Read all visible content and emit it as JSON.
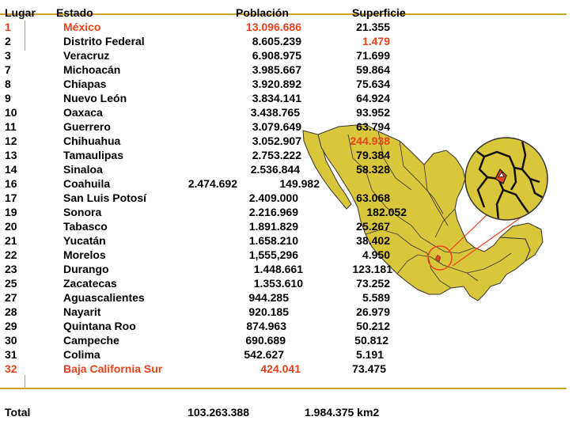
{
  "header": {
    "lugar": "Lugar",
    "estado": "Estado",
    "poblacion": "Población",
    "superficie": "Superficie"
  },
  "rows": [
    {
      "lugar": "1",
      "estado": "México",
      "poblacion": "13.096.686",
      "superficie": "21.355"
    },
    {
      "lugar": "2",
      "estado": "Distrito Federal",
      "poblacion": "8.605.239",
      "superficie": "1.479"
    },
    {
      "lugar": "3",
      "estado": "Veracruz",
      "poblacion": "6.908.975",
      "superficie": "71.699"
    },
    {
      "lugar": "7",
      "estado": "Michoacán",
      "poblacion": "3.985.667",
      "superficie": "59.864"
    },
    {
      "lugar": "8",
      "estado": "Chiapas",
      "poblacion": "3.920.892",
      "superficie": "75.634"
    },
    {
      "lugar": "9",
      "estado": "Nuevo León",
      "poblacion": "3.834.141",
      "superficie": "64.924"
    },
    {
      "lugar": "10",
      "estado": "Oaxaca",
      "poblacion": "3.438.765",
      "superficie": "93.952"
    },
    {
      "lugar": "11",
      "estado": "Guerrero",
      "poblacion": "3.079.649",
      "superficie": "63.794"
    },
    {
      "lugar": "12",
      "estado": "Chihuahua",
      "poblacion": "3.052.907",
      "superficie": "244.938"
    },
    {
      "lugar": "13",
      "estado": "Tamaulipas",
      "poblacion": "2.753.222",
      "superficie": "79.384"
    },
    {
      "lugar": "14",
      "estado": "Sinaloa",
      "poblacion": "2.536.844",
      "superficie": "58.328"
    },
    {
      "lugar": "16",
      "estado": "Coahuila",
      "poblacion": "2.474.692",
      "superficie": "149.982"
    },
    {
      "lugar": "17",
      "estado": "San Luis Potosí",
      "poblacion": "2.409.000",
      "superficie": "63.068"
    },
    {
      "lugar": "19",
      "estado": "Sonora",
      "poblacion": "2.216.969",
      "superficie": "182.052"
    },
    {
      "lugar": "20",
      "estado": "Tabasco",
      "poblacion": "1.891.829",
      "superficie": "25.267"
    },
    {
      "lugar": "21",
      "estado": "Yucatán",
      "poblacion": "1.658.210",
      "superficie": "38.402"
    },
    {
      "lugar": "22",
      "estado": "Morelos",
      "poblacion": "1,555,296",
      "superficie": "4.950"
    },
    {
      "lugar": "23",
      "estado": "Durango",
      "poblacion": "1.448.661",
      "superficie": "123.181"
    },
    {
      "lugar": "25",
      "estado": "Zacatecas",
      "poblacion": "1.353.610",
      "superficie": "73.252"
    },
    {
      "lugar": "27",
      "estado": "Aguascalientes",
      "poblacion": "944.285",
      "superficie": "5.589"
    },
    {
      "lugar": "28",
      "estado": "Nayarit",
      "poblacion": "920.185",
      "superficie": "26.979"
    },
    {
      "lugar": "29",
      "estado": "Quintana Roo",
      "poblacion": "874.963",
      "superficie": "50.212"
    },
    {
      "lugar": "30",
      "estado": "Campeche",
      "poblacion": "690.689",
      "superficie": "50.812"
    },
    {
      "lugar": "31",
      "estado": "Colima",
      "poblacion": "542.627",
      "superficie": "5.191"
    },
    {
      "lugar": "32",
      "estado": "Baja California Sur",
      "poblacion": "424.041",
      "superficie": "73.475"
    }
  ],
  "total": {
    "label": "Total",
    "poblacion": "103.263.388",
    "superficie": "1.984.375 km2"
  },
  "colors": {
    "highlight": "#e8431c",
    "map_fill": "#d9c63a",
    "rule": "#c9a227"
  },
  "icons": [
    "mexico-map",
    "zoom-inset-circle"
  ]
}
